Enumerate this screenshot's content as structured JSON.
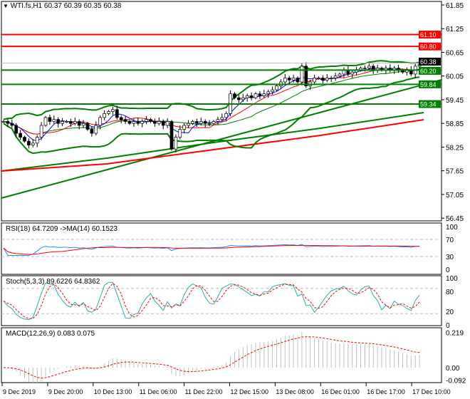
{
  "header": {
    "symbol_line": "WTI.fs,H1  60.37 60.39 60.35 60.38"
  },
  "colors": {
    "up_level": "#ff0000",
    "support": "#007f00",
    "current": "#000000",
    "rsi": "#1e90ff",
    "rsi_ma": "#ff0000",
    "stoch_main": "#20b2aa",
    "stoch_signal": "#ff0000",
    "macd_hist": "#c0c0c0",
    "macd_signal": "#ff0000"
  },
  "chart_data": [
    {
      "type": "candlestick",
      "title": "WTI.fs,H1",
      "ohlc_last": {
        "open": 60.37,
        "high": 60.39,
        "low": 60.35,
        "close": 60.38
      },
      "ylim": [
        56.45,
        61.85
      ],
      "y_ticks": [
        "61.85",
        "61.25",
        "60.65",
        "60.05",
        "59.45",
        "58.85",
        "58.25",
        "57.65",
        "57.05",
        "56.45"
      ],
      "x_ticks": [
        "9 Dec 2019",
        "9 Dec 20:00",
        "10 Dec 13:00",
        "11 Dec 06:00",
        "11 Dec 22:00",
        "12 Dec 15:00",
        "13 Dec 08:00",
        "16 Dec 01:00",
        "16 Dec 17:00",
        "17 Dec 10:00"
      ],
      "levels": [
        {
          "value": 61.1,
          "label": "61.10",
          "color": "#ff0000"
        },
        {
          "value": 60.8,
          "label": "60.80",
          "color": "#ff0000"
        },
        {
          "value": 60.38,
          "label": "60.38",
          "color": "#000000"
        },
        {
          "value": 60.2,
          "label": "60.20",
          "color": "#007f00"
        },
        {
          "value": 59.84,
          "label": "59.84",
          "color": "#007f00"
        },
        {
          "value": 59.34,
          "label": "59.34",
          "color": "#007f00"
        }
      ],
      "closes": [
        58.9,
        58.85,
        58.8,
        58.6,
        58.5,
        58.4,
        58.3,
        58.35,
        58.5,
        58.8,
        59.0,
        58.9,
        58.95,
        58.85,
        58.9,
        58.9,
        58.85,
        58.9,
        58.8,
        58.85,
        58.7,
        58.6,
        58.8,
        59.0,
        59.1,
        59.15,
        59.2,
        59.0,
        58.95,
        58.9,
        58.85,
        58.9,
        58.85,
        58.9,
        58.95,
        58.9,
        58.85,
        58.9,
        58.8,
        58.9,
        58.2,
        58.5,
        58.7,
        58.8,
        58.85,
        58.9,
        58.85,
        58.9,
        58.85,
        58.85,
        58.9,
        58.95,
        59.0,
        59.1,
        59.6,
        59.5,
        59.45,
        59.5,
        59.55,
        59.5,
        59.6,
        59.55,
        59.6,
        59.65,
        59.7,
        59.8,
        59.9,
        60.0,
        59.95,
        60.0,
        59.9,
        60.3,
        59.8,
        59.9,
        60.0,
        60.0,
        59.95,
        60.0,
        60.0,
        60.05,
        60.1,
        60.2,
        60.1,
        60.15,
        60.2,
        60.25,
        60.25,
        60.3,
        60.2,
        60.25,
        60.2,
        60.25,
        60.2,
        60.25,
        60.2,
        60.15,
        60.2,
        60.1,
        60.3,
        60.38
      ]
    },
    {
      "type": "line",
      "title": "RSI(18) 64.7209  ->MA(14) 60.1523",
      "ylim": [
        0,
        100
      ],
      "y_ticks": [
        "100",
        "70",
        "30",
        "0"
      ],
      "levels": [
        70,
        30
      ]
    },
    {
      "type": "line",
      "title": "Stoch(5,3,3) 89.6226 64.8362",
      "ylim": [
        0,
        100
      ],
      "y_ticks": [
        "100",
        "80",
        "20",
        "0"
      ],
      "levels": [
        80,
        20
      ]
    },
    {
      "type": "bar",
      "title": "MACD(12,26,9) 0.083 0.075",
      "ylim": [
        -0.092,
        0.219
      ],
      "y_ticks": [
        "0.219",
        "0.00",
        "-0.092"
      ]
    }
  ]
}
